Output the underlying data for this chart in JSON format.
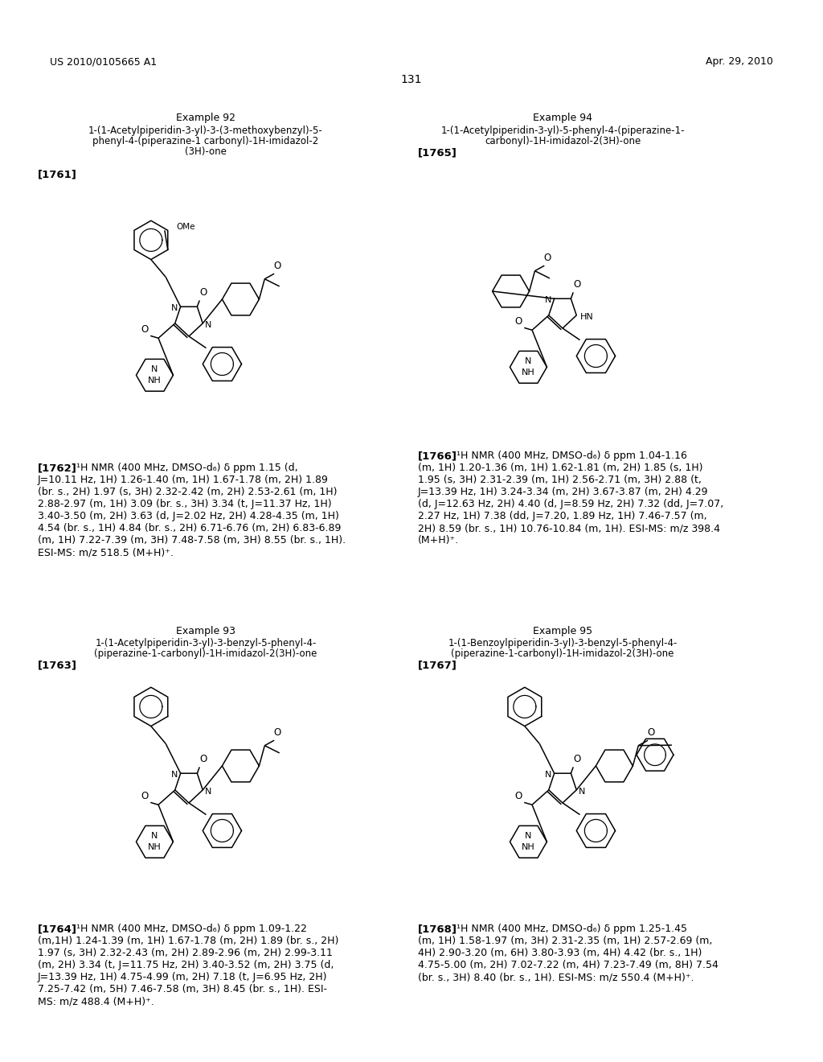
{
  "page_header_left": "US 2010/0105665 A1",
  "page_header_right": "Apr. 29, 2010",
  "page_number": "131",
  "example92_title": "Example 92",
  "example92_name_lines": [
    "1-(1-Acetylpiperidin-3-yl)-3-(3-methoxybenzyl)-5-",
    "phenyl-4-(piperazine-1 carbonyl)-1H-imidazol-2",
    "(3H)-one"
  ],
  "example92_ref": "[1761]",
  "example92_nmr_ref": "[1762]",
  "example92_nmr_lines": [
    "¹H NMR (400 MHz, DMSO-d₆) δ ppm 1.15 (d,",
    "J=10.11 Hz, 1H) 1.26-1.40 (m, 1H) 1.67-1.78 (m, 2H) 1.89",
    "(br. s., 2H) 1.97 (s, 3H) 2.32-2.42 (m, 2H) 2.53-2.61 (m, 1H)",
    "2.88-2.97 (m, 1H) 3.09 (br. s., 3H) 3.34 (t, J=11.37 Hz, 1H)",
    "3.40-3.50 (m, 2H) 3.63 (d, J=2.02 Hz, 2H) 4.28-4.35 (m, 1H)",
    "4.54 (br. s., 1H) 4.84 (br. s., 2H) 6.71-6.76 (m, 2H) 6.83-6.89",
    "(m, 1H) 7.22-7.39 (m, 3H) 7.48-7.58 (m, 3H) 8.55 (br. s., 1H).",
    "ESI-MS: m/z 518.5 (M+H)⁺."
  ],
  "example93_title": "Example 93",
  "example93_name_lines": [
    "1-(1-Acetylpiperidin-3-yl)-3-benzyl-5-phenyl-4-",
    "(piperazine-1-carbonyl)-1H-imidazol-2(3H)-one"
  ],
  "example93_ref": "[1763]",
  "example93_nmr_ref": "[1764]",
  "example93_nmr_lines": [
    "¹H NMR (400 MHz, DMSO-d₆) δ ppm 1.09-1.22",
    "(m,1H) 1.24-1.39 (m, 1H) 1.67-1.78 (m, 2H) 1.89 (br. s., 2H)",
    "1.97 (s, 3H) 2.32-2.43 (m, 2H) 2.89-2.96 (m, 2H) 2.99-3.11",
    "(m, 2H) 3.34 (t, J=11.75 Hz, 2H) 3.40-3.52 (m, 2H) 3.75 (d,",
    "J=13.39 Hz, 1H) 4.75-4.99 (m, 2H) 7.18 (t, J=6.95 Hz, 2H)",
    "7.25-7.42 (m, 5H) 7.46-7.58 (m, 3H) 8.45 (br. s., 1H). ESI-",
    "MS: m/z 488.4 (M+H)⁺."
  ],
  "example94_title": "Example 94",
  "example94_name_lines": [
    "1-(1-Acetylpiperidin-3-yl)-5-phenyl-4-(piperazine-1-",
    "carbonyl)-1H-imidazol-2(3H)-one"
  ],
  "example94_ref": "[1765]",
  "example94_nmr_ref": "[1766]",
  "example94_nmr_lines": [
    "¹H NMR (400 MHz, DMSO-d₆) δ ppm 1.04-1.16",
    "(m, 1H) 1.20-1.36 (m, 1H) 1.62-1.81 (m, 2H) 1.85 (s, 1H)",
    "1.95 (s, 3H) 2.31-2.39 (m, 1H) 2.56-2.71 (m, 3H) 2.88 (t,",
    "J=13.39 Hz, 1H) 3.24-3.34 (m, 2H) 3.67-3.87 (m, 2H) 4.29",
    "(d, J=12.63 Hz, 2H) 4.40 (d, J=8.59 Hz, 2H) 7.32 (dd, J=7.07,",
    "2.27 Hz, 1H) 7.38 (dd, J=7.20, 1.89 Hz, 1H) 7.46-7.57 (m,",
    "2H) 8.59 (br. s., 1H) 10.76-10.84 (m, 1H). ESI-MS: m/z 398.4",
    "(M+H)⁺."
  ],
  "example95_title": "Example 95",
  "example95_name_lines": [
    "1-(1-Benzoylpiperidin-3-yl)-3-benzyl-5-phenyl-4-",
    "(piperazine-1-carbonyl)-1H-imidazol-2(3H)-one"
  ],
  "example95_ref": "[1767]",
  "example95_nmr_ref": "[1768]",
  "example95_nmr_lines": [
    "¹H NMR (400 MHz, DMSO-d₆) δ ppm 1.25-1.45",
    "(m, 1H) 1.58-1.97 (m, 3H) 2.31-2.35 (m, 1H) 2.57-2.69 (m,",
    "4H) 2.90-3.20 (m, 6H) 3.80-3.93 (m, 4H) 4.42 (br. s., 1H)",
    "4.75-5.00 (m, 2H) 7.02-7.22 (m, 4H) 7.23-7.49 (m, 8H) 7.54",
    "(br. s., 3H) 8.40 (br. s., 1H). ESI-MS: m/z 550.4 (M+H)⁺."
  ]
}
